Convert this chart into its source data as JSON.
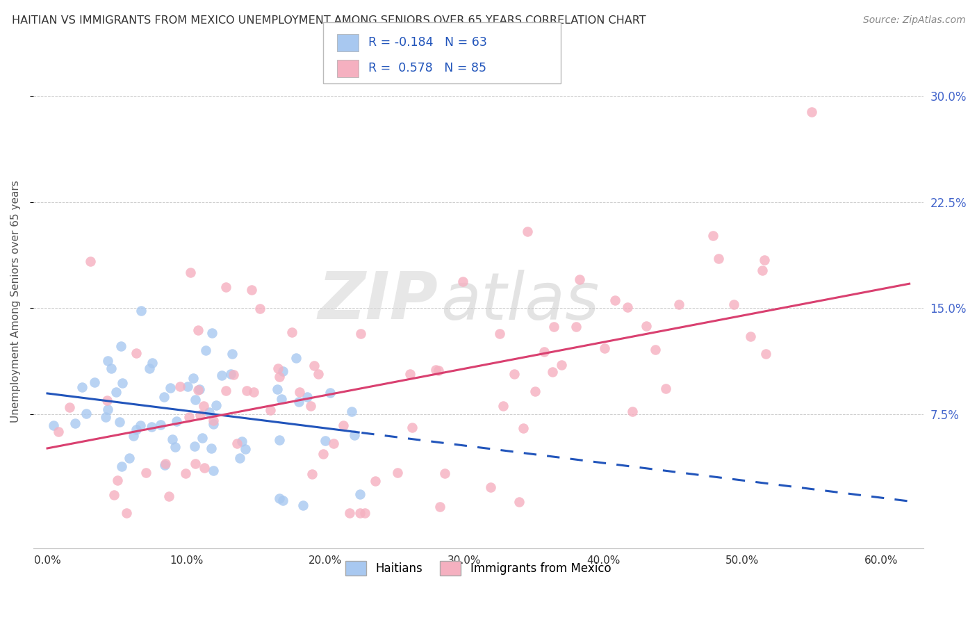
{
  "title": "HAITIAN VS IMMIGRANTS FROM MEXICO UNEMPLOYMENT AMONG SENIORS OVER 65 YEARS CORRELATION CHART",
  "source": "Source: ZipAtlas.com",
  "ylabel": "Unemployment Among Seniors over 65 years",
  "xlabel_ticks": [
    "0.0%",
    "10.0%",
    "20.0%",
    "30.0%",
    "40.0%",
    "50.0%",
    "60.0%"
  ],
  "xlabel_vals": [
    0.0,
    0.1,
    0.2,
    0.3,
    0.4,
    0.5,
    0.6
  ],
  "ylim": [
    -0.02,
    0.33
  ],
  "xlim": [
    -0.01,
    0.63
  ],
  "ytick_labels": [
    "7.5%",
    "15.0%",
    "22.5%",
    "30.0%"
  ],
  "ytick_vals": [
    0.075,
    0.15,
    0.225,
    0.3
  ],
  "haitian_R": -0.184,
  "haitian_N": 63,
  "haitian_line_color": "#2255bb",
  "haitian_dot_color": "#a8c8f0",
  "mexico_R": 0.578,
  "mexico_N": 85,
  "mexico_line_color": "#d94070",
  "mexico_dot_color": "#f5b0c0",
  "watermark_zip": "ZIP",
  "watermark_atlas": "atlas",
  "background_color": "#ffffff",
  "grid_color": "#cccccc",
  "title_color": "#333333",
  "right_tick_color": "#4466cc",
  "seed": 99
}
